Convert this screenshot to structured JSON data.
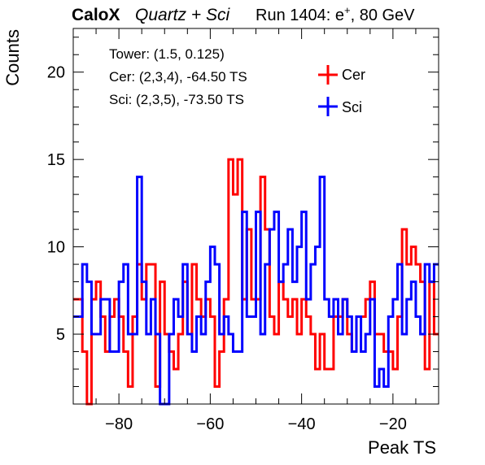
{
  "header": {
    "experiment": "CaloX",
    "detector": "Quartz + Sci",
    "run_prefix": "Run 1404: e",
    "run_particle_sup": "+",
    "run_suffix": ", 80 GeV"
  },
  "info_box": {
    "tower": "Tower: (1.5, 0.125)",
    "cer": "Cer: (2,3,4), -64.50 TS",
    "sci": "Sci: (2,3,5), -73.50 TS"
  },
  "colors": {
    "cer": "#ff0000",
    "sci": "#0000ff"
  },
  "chart_data": {
    "type": "line",
    "style": "step-histogram",
    "xlabel": "Peak TS",
    "ylabel": "Counts",
    "xlim": [
      -90,
      -10
    ],
    "ylim": [
      1,
      22.5
    ],
    "xticks": [
      -80,
      -60,
      -40,
      -20
    ],
    "xtick_labels": [
      "−80",
      "−60",
      "−40",
      "−20"
    ],
    "yticks": [
      5,
      10,
      15,
      20
    ],
    "ytick_labels": [
      "5",
      "10",
      "15",
      "20"
    ],
    "bin_width": 1,
    "bin_start": -90,
    "legend_position": "top-right",
    "series": [
      {
        "name": "Cer",
        "color": "#ff0000",
        "values": [
          7,
          7,
          4,
          1,
          7,
          8,
          6,
          4,
          6,
          7,
          6,
          4,
          2,
          6,
          9,
          7,
          9,
          9,
          2,
          8,
          5,
          4,
          3,
          5,
          8,
          5,
          9,
          7,
          6,
          7,
          6,
          2,
          4,
          7,
          15,
          13,
          15,
          7,
          11,
          7,
          7,
          14,
          11,
          6,
          5,
          8,
          7,
          6,
          7,
          5,
          7,
          6,
          5,
          3,
          5,
          3,
          3,
          6,
          6,
          7,
          5,
          4,
          6,
          6,
          7,
          8,
          5,
          5,
          4,
          4,
          3,
          6,
          11,
          9,
          10,
          9,
          8,
          3,
          8,
          5
        ]
      },
      {
        "name": "Sci",
        "color": "#0000ff",
        "values": [
          6,
          6,
          9,
          8,
          5,
          5,
          7,
          7,
          4,
          4,
          8,
          9,
          5,
          5,
          14,
          8,
          5,
          7,
          5,
          1,
          1,
          5,
          7,
          6,
          9,
          5,
          4,
          6,
          5,
          8,
          10,
          9,
          5,
          6,
          5,
          4,
          4,
          12,
          6,
          6,
          12,
          5,
          9,
          11,
          12,
          8,
          9,
          11,
          8,
          10,
          12,
          7,
          9,
          10,
          14,
          7,
          6,
          7,
          5,
          7,
          6,
          4,
          6,
          4,
          5,
          7,
          2,
          3,
          2,
          6,
          7,
          9,
          5,
          7,
          8,
          6,
          5,
          9,
          8,
          9
        ]
      }
    ]
  }
}
